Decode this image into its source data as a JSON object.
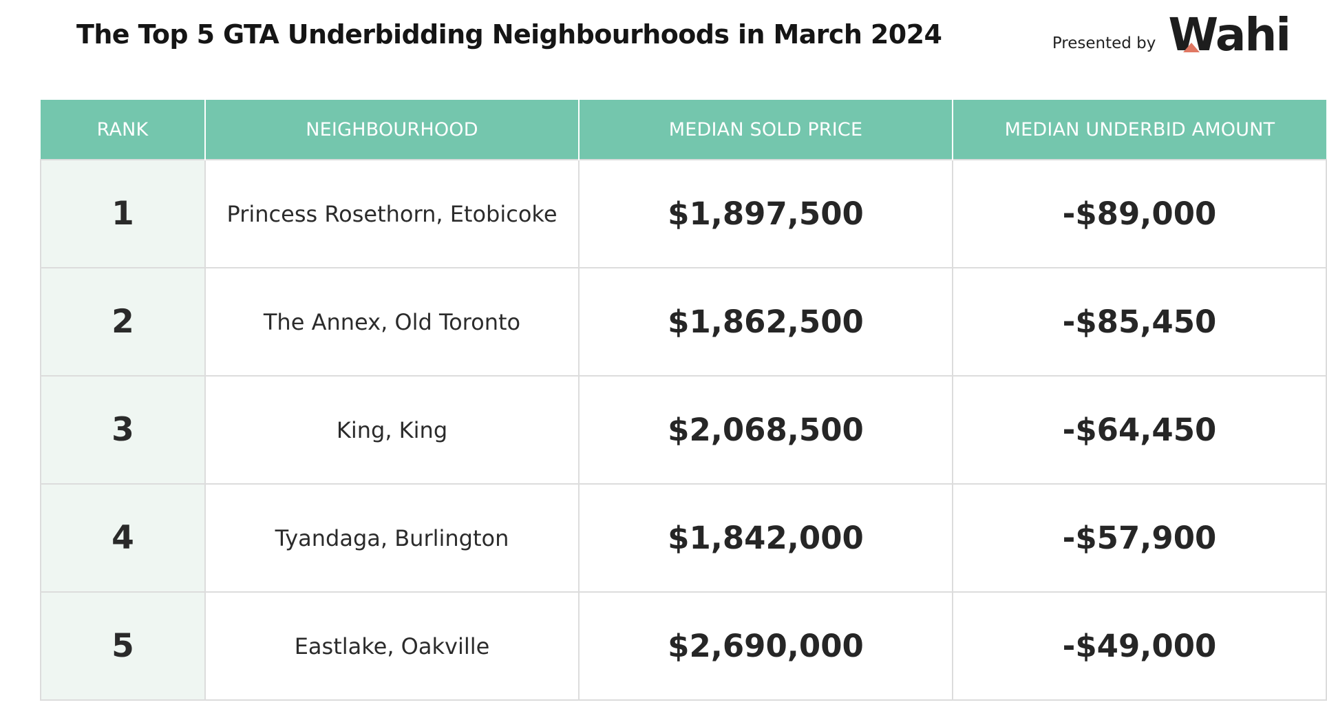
{
  "title": "The Top 5 GTA Underbidding Neighbourhoods in March 2024",
  "brand": {
    "presented_by": "Presented by",
    "logo_text": "Wahi",
    "logo_accent_color": "#e07863"
  },
  "colors": {
    "header_bg": "#74c6ad",
    "rank_col_bg": "#eff6f2"
  },
  "table": {
    "headers": [
      "RANK",
      "NEIGHBOURHOOD",
      "MEDIAN SOLD PRICE",
      "MEDIAN UNDERBID AMOUNT"
    ],
    "rows": [
      {
        "rank": "1",
        "neighbourhood": "Princess Rosethorn, Etobicoke",
        "median_sold_price": "$1,897,500",
        "median_underbid": "-$89,000"
      },
      {
        "rank": "2",
        "neighbourhood": "The Annex, Old Toronto",
        "median_sold_price": "$1,862,500",
        "median_underbid": "-$85,450"
      },
      {
        "rank": "3",
        "neighbourhood": "King, King",
        "median_sold_price": "$2,068,500",
        "median_underbid": "-$64,450"
      },
      {
        "rank": "4",
        "neighbourhood": "Tyandaga, Burlington",
        "median_sold_price": "$1,842,000",
        "median_underbid": "-$57,900"
      },
      {
        "rank": "5",
        "neighbourhood": "Eastlake, Oakville",
        "median_sold_price": "$2,690,000",
        "median_underbid": "-$49,000"
      }
    ]
  }
}
